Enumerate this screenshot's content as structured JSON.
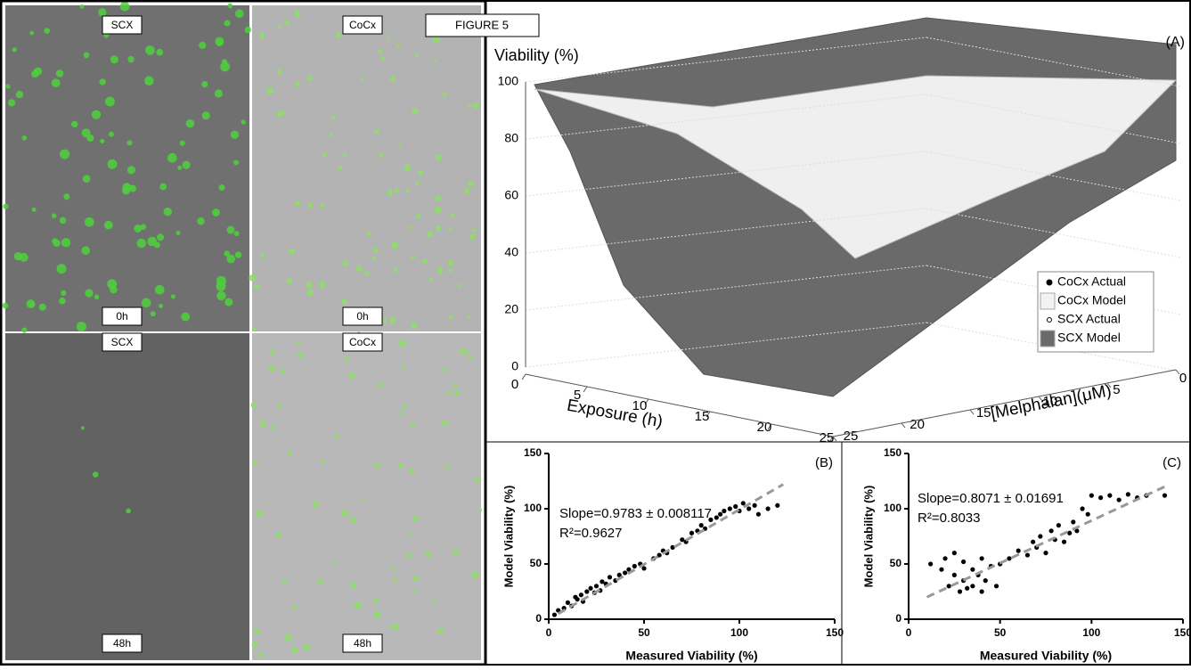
{
  "figure_label": "FIGURE 5",
  "panels": [
    {
      "top_label": "SCX",
      "bottom_label": "0h"
    },
    {
      "top_label": "CoCx",
      "bottom_label": "0h"
    },
    {
      "top_label": "SCX",
      "bottom_label": "48h"
    },
    {
      "top_label": "CoCx",
      "bottom_label": "48h"
    }
  ],
  "chart_data": [
    {
      "type": "surface3d",
      "panel_label": "(A)",
      "zlabel": "Viability (%)",
      "xlabel": "Exposure (h)",
      "ylabel": "[Melphalan](μM)",
      "zlim": [
        0,
        100
      ],
      "zticks": [
        0,
        20,
        40,
        60,
        80,
        100
      ],
      "xlim": [
        0,
        25
      ],
      "xticks": [
        0,
        5,
        10,
        15,
        20,
        25
      ],
      "ylim": [
        0,
        25
      ],
      "yticks": [
        0,
        5,
        10,
        15,
        20,
        25
      ],
      "series": [
        {
          "name": "CoCx Actual",
          "color": "#000000"
        },
        {
          "name": "CoCx Model",
          "color": "#f2f2f2"
        },
        {
          "name": "SCX Actual",
          "color": "#ffffff"
        },
        {
          "name": "SCX Model",
          "color": "#6a6a6a"
        }
      ]
    },
    {
      "type": "scatter",
      "panel_label": "(B)",
      "xlabel": "Measured Viability (%)",
      "ylabel": "Model Viability (%)",
      "annotations": [
        "Slope=0.9783 ± 0.008117",
        "R²=0.9627"
      ],
      "xlim": [
        0,
        150
      ],
      "xticks": [
        0,
        50,
        100,
        150
      ],
      "ylim": [
        0,
        150
      ],
      "yticks": [
        0,
        50,
        100,
        150
      ],
      "color": "#000000",
      "x": [
        3,
        5,
        8,
        10,
        12,
        14,
        15,
        17,
        18,
        20,
        22,
        24,
        25,
        27,
        28,
        30,
        32,
        35,
        37,
        40,
        42,
        45,
        48,
        50,
        55,
        58,
        60,
        62,
        65,
        70,
        72,
        75,
        78,
        80,
        82,
        85,
        88,
        90,
        92,
        95,
        98,
        100,
        102,
        105,
        108,
        110,
        115,
        120
      ],
      "values": [
        4,
        8,
        10,
        15,
        12,
        20,
        18,
        22,
        16,
        25,
        28,
        24,
        30,
        26,
        34,
        32,
        38,
        35,
        40,
        42,
        45,
        48,
        50,
        46,
        55,
        58,
        62,
        60,
        65,
        72,
        70,
        78,
        80,
        85,
        82,
        90,
        92,
        95,
        98,
        100,
        102,
        98,
        105,
        100,
        103,
        95,
        100,
        103
      ],
      "trend": {
        "x": [
          5,
          123
        ],
        "values": [
          5,
          122
        ],
        "color": "#999999"
      }
    },
    {
      "type": "scatter",
      "panel_label": "(C)",
      "xlabel": "Measured Viability (%)",
      "ylabel": "Model Viability (%)",
      "annotations": [
        "Slope=0.8071 ± 0.01691",
        "R²=0.8033"
      ],
      "xlim": [
        0,
        150
      ],
      "xticks": [
        0,
        50,
        100,
        150
      ],
      "ylim": [
        0,
        150
      ],
      "yticks": [
        0,
        50,
        100,
        150
      ],
      "color": "#000000",
      "x": [
        12,
        18,
        20,
        22,
        25,
        25,
        28,
        30,
        30,
        32,
        35,
        35,
        38,
        40,
        40,
        42,
        45,
        48,
        50,
        55,
        60,
        65,
        68,
        70,
        72,
        75,
        78,
        80,
        82,
        85,
        88,
        90,
        92,
        95,
        98,
        100,
        105,
        110,
        115,
        120,
        125,
        130,
        140
      ],
      "values": [
        50,
        45,
        55,
        30,
        40,
        60,
        25,
        35,
        52,
        28,
        45,
        30,
        40,
        25,
        55,
        35,
        48,
        30,
        50,
        55,
        62,
        58,
        70,
        65,
        75,
        60,
        80,
        72,
        85,
        70,
        78,
        88,
        80,
        100,
        95,
        112,
        110,
        112,
        108,
        113,
        110,
        112,
        112
      ],
      "trend": {
        "x": [
          10,
          140
        ],
        "values": [
          20,
          120
        ],
        "color": "#999999"
      }
    }
  ]
}
